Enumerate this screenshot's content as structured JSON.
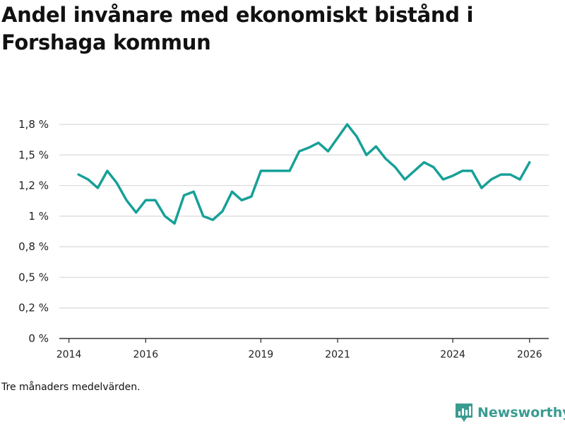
{
  "title": "Andel invånare med ekonomiskt bistånd i Forshaga kommun",
  "footnote": "Tre månaders medelvärden.",
  "brand": {
    "name": "Newsworthy",
    "icon": "newsworthy-logo-icon",
    "color": "#3a9b91"
  },
  "chart_data": {
    "type": "line",
    "title": "Andel invånare med ekonomiskt bistånd i Forshaga kommun",
    "xlabel": "",
    "ylabel": "",
    "line_color": "#17a097",
    "grid": true,
    "xlim": [
      2013.75,
      2026.5
    ],
    "ylim": [
      0,
      1.75
    ],
    "y_ticks": [
      {
        "value": 0,
        "label": "0 %"
      },
      {
        "value": 0.25,
        "label": "0,2 %"
      },
      {
        "value": 0.5,
        "label": "0,5 %"
      },
      {
        "value": 0.75,
        "label": "0,8 %"
      },
      {
        "value": 1.0,
        "label": "1 %"
      },
      {
        "value": 1.25,
        "label": "1,2 %"
      },
      {
        "value": 1.5,
        "label": "1,5 %"
      },
      {
        "value": 1.75,
        "label": "1,8 %"
      }
    ],
    "x_ticks": [
      {
        "value": 2014,
        "label": "2014"
      },
      {
        "value": 2016,
        "label": "2016"
      },
      {
        "value": 2019,
        "label": "2019"
      },
      {
        "value": 2021,
        "label": "2021"
      },
      {
        "value": 2024,
        "label": "2024"
      },
      {
        "value": 2026,
        "label": "2026"
      }
    ],
    "series": [
      {
        "name": "Andel invånare med ekonomiskt bistånd",
        "x": [
          2014.25,
          2014.5,
          2014.75,
          2015.0,
          2015.25,
          2015.5,
          2015.75,
          2016.0,
          2016.25,
          2016.5,
          2016.75,
          2017.0,
          2017.25,
          2017.5,
          2017.75,
          2018.0,
          2018.25,
          2018.5,
          2018.75,
          2019.0,
          2019.25,
          2019.5,
          2019.75,
          2020.0,
          2020.25,
          2020.5,
          2020.75,
          2021.0,
          2021.25,
          2021.5,
          2021.75,
          2022.0,
          2022.25,
          2022.5,
          2022.75,
          2023.0,
          2023.25,
          2023.5,
          2023.75,
          2024.0,
          2024.25,
          2024.5,
          2024.75,
          2025.0,
          2025.25,
          2025.5,
          2025.75,
          2026.0
        ],
        "values": [
          1.34,
          1.3,
          1.23,
          1.37,
          1.27,
          1.13,
          1.03,
          1.13,
          1.13,
          1.0,
          0.94,
          1.17,
          1.2,
          1.0,
          0.97,
          1.04,
          1.2,
          1.13,
          1.16,
          1.37,
          1.37,
          1.37,
          1.37,
          1.53,
          1.56,
          1.6,
          1.53,
          1.64,
          1.75,
          1.65,
          1.5,
          1.57,
          1.47,
          1.4,
          1.3,
          1.37,
          1.44,
          1.4,
          1.3,
          1.33,
          1.37,
          1.37,
          1.23,
          1.3,
          1.34,
          1.34,
          1.3,
          1.44
        ]
      }
    ]
  }
}
